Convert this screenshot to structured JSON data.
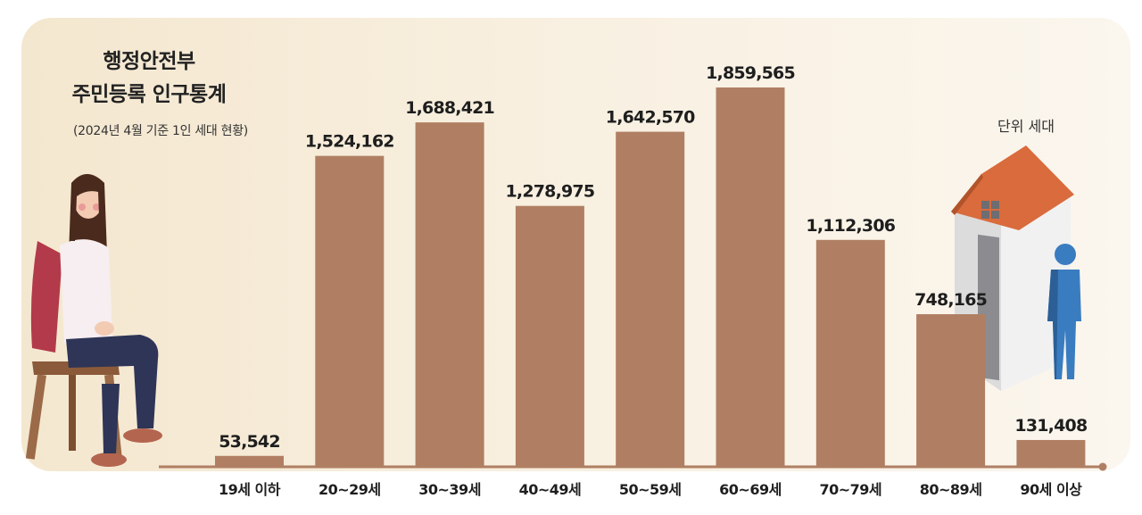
{
  "header": {
    "title_line1": "행정안전부",
    "title_line2": "주민등록 인구통계",
    "subtitle": "(2024년 4월 기준 1인 세대 현황)",
    "unit": "단위 세대"
  },
  "colors": {
    "bar": "#b07f63",
    "axis": "#b07f63",
    "panel": "#f6ead6"
  },
  "icons": [
    "woman-sitting-illustration",
    "house-icon",
    "person-icon"
  ],
  "chart_data": {
    "type": "bar",
    "categories": [
      "19세 이하",
      "20~29세",
      "30~39세",
      "40~49세",
      "50~59세",
      "60~69세",
      "70~79세",
      "80~89세",
      "90세 이상"
    ],
    "values": [
      53542,
      1524162,
      1688421,
      1278975,
      1642570,
      1859565,
      1112306,
      748165,
      131408
    ],
    "value_labels": [
      "53,542",
      "1,524,162",
      "1,688,421",
      "1,278,975",
      "1,642,570",
      "1,859,565",
      "1,112,306",
      "748,165",
      "131,408"
    ],
    "ylim": [
      0,
      2000000
    ],
    "grid": false
  }
}
